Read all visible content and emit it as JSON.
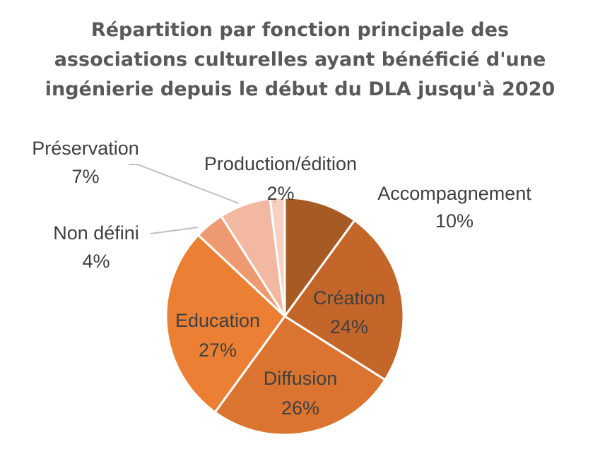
{
  "chart_data": {
    "type": "pie",
    "title_lines": [
      "Répartition par fonction principale des",
      "associations culturelles ayant bénéficié d'une",
      "ingénierie depuis le début du DLA jusqu'à 2020"
    ],
    "slices": [
      {
        "label": "Accompagnement",
        "percent_label": "10%",
        "value": 10,
        "color": "#A65A24"
      },
      {
        "label": "Création",
        "percent_label": "24%",
        "value": 24,
        "color": "#C4662A"
      },
      {
        "label": "Diffusion",
        "percent_label": "26%",
        "value": 26,
        "color": "#DB7430"
      },
      {
        "label": "Education",
        "percent_label": "27%",
        "value": 27,
        "color": "#EB8034"
      },
      {
        "label": "Non défini",
        "percent_label": "4%",
        "value": 4,
        "color": "#ED9A72"
      },
      {
        "label": "Préservation",
        "percent_label": "7%",
        "value": 7,
        "color": "#F2B8A2"
      },
      {
        "label": "Production/édition",
        "percent_label": "2%",
        "value": 2,
        "color": "#F6D0C3"
      }
    ],
    "label_text_color": "#404040",
    "leader_line_color": "#BFBFBF"
  }
}
